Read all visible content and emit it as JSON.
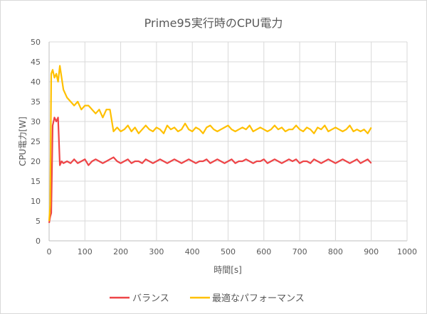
{
  "chart_data": {
    "type": "line",
    "title": "Prime95実行時のCPU電力",
    "xlabel": "時間[s]",
    "ylabel": "CPU電力[W]",
    "xlim": [
      0,
      1000
    ],
    "ylim": [
      0,
      50
    ],
    "xticks": [
      0,
      100,
      200,
      300,
      400,
      500,
      600,
      700,
      800,
      900,
      1000
    ],
    "yticks": [
      0,
      5,
      10,
      15,
      20,
      25,
      30,
      35,
      40,
      45,
      50
    ],
    "grid": true,
    "legend": "bottom",
    "x": [
      0,
      3,
      6,
      10,
      15,
      20,
      25,
      30,
      35,
      40,
      50,
      60,
      70,
      80,
      90,
      100,
      110,
      120,
      130,
      140,
      150,
      160,
      170,
      180,
      190,
      200,
      210,
      220,
      230,
      240,
      250,
      260,
      270,
      280,
      290,
      300,
      310,
      320,
      330,
      340,
      350,
      360,
      370,
      380,
      390,
      400,
      410,
      420,
      430,
      440,
      450,
      460,
      470,
      480,
      490,
      500,
      510,
      520,
      530,
      540,
      550,
      560,
      570,
      580,
      590,
      600,
      610,
      620,
      630,
      640,
      650,
      660,
      670,
      680,
      690,
      700,
      710,
      720,
      730,
      740,
      750,
      760,
      770,
      780,
      790,
      800,
      810,
      820,
      830,
      840,
      850,
      860,
      870,
      880,
      890,
      900
    ],
    "series": [
      {
        "name": "バランス",
        "color": "#ee4447",
        "values": [
          4.5,
          6,
          7,
          29,
          31,
          30,
          31,
          19,
          20,
          19.5,
          20,
          19.5,
          20.5,
          19.5,
          20,
          20.5,
          19,
          20,
          20.5,
          20,
          19.5,
          20,
          20.5,
          21,
          20,
          19.5,
          20,
          20.5,
          19.5,
          20,
          20,
          19.5,
          20.5,
          20,
          19.5,
          20,
          20.5,
          20,
          19.5,
          20,
          20.5,
          20,
          19.5,
          20,
          20.5,
          20,
          19.5,
          20,
          20,
          20.5,
          19.5,
          20,
          20.5,
          20,
          19.5,
          20,
          20.5,
          19.5,
          20,
          20,
          20.5,
          20,
          19.5,
          20,
          20,
          20.5,
          19.5,
          20,
          20.5,
          20,
          19.5,
          20,
          20.5,
          20,
          20.5,
          19.5,
          20,
          20,
          19.5,
          20.5,
          20,
          19.5,
          20,
          20.5,
          20,
          19.5,
          20,
          20.5,
          20,
          19.5,
          20,
          20.5,
          19.5,
          20,
          20.5,
          19.5
        ]
      },
      {
        "name": "最適なパフォーマンス",
        "color": "#ffc000",
        "values": [
          5,
          9,
          42,
          43,
          41,
          42,
          40,
          44,
          41,
          38,
          36,
          35,
          34,
          35,
          33,
          34,
          34,
          33,
          32,
          33,
          31,
          33,
          33,
          27.5,
          28.5,
          27.5,
          28,
          29,
          27.5,
          28.5,
          27,
          28,
          29,
          28,
          27.5,
          28.5,
          28,
          27,
          29,
          28,
          28.5,
          27.5,
          28,
          29.5,
          28,
          27.5,
          28.5,
          28,
          27,
          28.5,
          29,
          28,
          27.5,
          28,
          28.5,
          29,
          28,
          27.5,
          28,
          28.5,
          28,
          29,
          27.5,
          28,
          28.5,
          28,
          27.5,
          28,
          29,
          28,
          28.5,
          27.5,
          28,
          28,
          29,
          28,
          27.5,
          28.5,
          28,
          27,
          28.5,
          28,
          29,
          27.5,
          28,
          28.5,
          28,
          27.5,
          28,
          29,
          27.5,
          28,
          27.5,
          28,
          27,
          28.5
        ]
      }
    ]
  }
}
